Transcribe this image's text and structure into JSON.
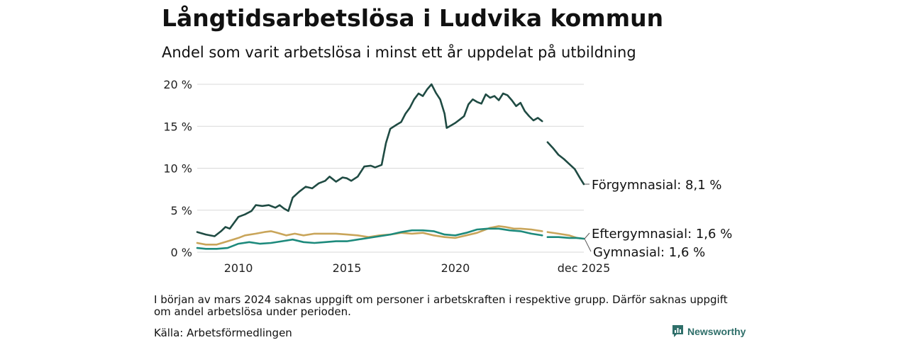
{
  "chart_data": {
    "type": "line",
    "title": "Långtidsarbetslösa i Ludvika kommun",
    "subtitle": "Andel som varit arbetslösa i minst ett år uppdelat på utbildning",
    "x_ticks": [
      {
        "x": 2010,
        "label": "2010"
      },
      {
        "x": 2015,
        "label": "2015"
      },
      {
        "x": 2020,
        "label": "2020"
      },
      {
        "x": 2025.92,
        "label": "dec 2025"
      }
    ],
    "y_ticks": [
      {
        "y": 0,
        "label": "0 %"
      },
      {
        "y": 5,
        "label": "5 %"
      },
      {
        "y": 10,
        "label": "10 %"
      },
      {
        "y": 15,
        "label": "15 %"
      },
      {
        "y": 20,
        "label": "20 %"
      }
    ],
    "xlim": [
      2008.1,
      2025.92
    ],
    "ylim": [
      0,
      20
    ],
    "gap": [
      2024.0,
      2024.25
    ],
    "series": [
      {
        "name": "Förgymnasial",
        "end_label": "Förgymnasial: 8,1 %",
        "color": "#1f4b43",
        "points": [
          [
            2008.1,
            2.4
          ],
          [
            2008.5,
            2.1
          ],
          [
            2008.9,
            1.9
          ],
          [
            2009.2,
            2.5
          ],
          [
            2009.4,
            3.0
          ],
          [
            2009.6,
            2.8
          ],
          [
            2009.8,
            3.5
          ],
          [
            2010.0,
            4.2
          ],
          [
            2010.3,
            4.5
          ],
          [
            2010.6,
            4.9
          ],
          [
            2010.8,
            5.6
          ],
          [
            2011.1,
            5.5
          ],
          [
            2011.4,
            5.6
          ],
          [
            2011.7,
            5.3
          ],
          [
            2011.9,
            5.6
          ],
          [
            2012.1,
            5.2
          ],
          [
            2012.3,
            4.9
          ],
          [
            2012.5,
            6.5
          ],
          [
            2012.8,
            7.2
          ],
          [
            2013.1,
            7.8
          ],
          [
            2013.4,
            7.6
          ],
          [
            2013.7,
            8.2
          ],
          [
            2014.0,
            8.5
          ],
          [
            2014.2,
            9.0
          ],
          [
            2014.5,
            8.4
          ],
          [
            2014.8,
            8.9
          ],
          [
            2015.0,
            8.8
          ],
          [
            2015.2,
            8.5
          ],
          [
            2015.5,
            9.0
          ],
          [
            2015.8,
            10.2
          ],
          [
            2016.1,
            10.3
          ],
          [
            2016.3,
            10.1
          ],
          [
            2016.6,
            10.4
          ],
          [
            2016.8,
            13.0
          ],
          [
            2017.0,
            14.7
          ],
          [
            2017.3,
            15.2
          ],
          [
            2017.5,
            15.5
          ],
          [
            2017.7,
            16.5
          ],
          [
            2017.9,
            17.2
          ],
          [
            2018.1,
            18.2
          ],
          [
            2018.3,
            18.9
          ],
          [
            2018.5,
            18.6
          ],
          [
            2018.7,
            19.4
          ],
          [
            2018.9,
            20.0
          ],
          [
            2019.1,
            19.0
          ],
          [
            2019.3,
            18.2
          ],
          [
            2019.5,
            16.5
          ],
          [
            2019.6,
            14.8
          ],
          [
            2019.8,
            15.1
          ],
          [
            2020.0,
            15.4
          ],
          [
            2020.2,
            15.8
          ],
          [
            2020.4,
            16.2
          ],
          [
            2020.6,
            17.6
          ],
          [
            2020.8,
            18.2
          ],
          [
            2021.0,
            17.9
          ],
          [
            2021.2,
            17.7
          ],
          [
            2021.4,
            18.8
          ],
          [
            2021.6,
            18.4
          ],
          [
            2021.8,
            18.6
          ],
          [
            2022.0,
            18.1
          ],
          [
            2022.2,
            18.9
          ],
          [
            2022.4,
            18.7
          ],
          [
            2022.6,
            18.1
          ],
          [
            2022.8,
            17.4
          ],
          [
            2023.0,
            17.8
          ],
          [
            2023.2,
            16.8
          ],
          [
            2023.4,
            16.2
          ],
          [
            2023.6,
            15.7
          ],
          [
            2023.8,
            16.0
          ],
          [
            2024.0,
            15.6
          ],
          [
            2024.25,
            13.1
          ],
          [
            2024.5,
            12.4
          ],
          [
            2024.75,
            11.6
          ],
          [
            2025.0,
            11.1
          ],
          [
            2025.25,
            10.5
          ],
          [
            2025.5,
            9.9
          ],
          [
            2025.75,
            8.8
          ],
          [
            2025.92,
            8.1
          ]
        ]
      },
      {
        "name": "Eftergymnasial",
        "end_label": "Eftergymnasial: 1,6 %",
        "color": "#c9a55a",
        "points": [
          [
            2008.1,
            1.1
          ],
          [
            2008.5,
            0.9
          ],
          [
            2009.0,
            0.9
          ],
          [
            2009.5,
            1.3
          ],
          [
            2010.0,
            1.7
          ],
          [
            2010.3,
            2.0
          ],
          [
            2010.8,
            2.2
          ],
          [
            2011.2,
            2.4
          ],
          [
            2011.5,
            2.5
          ],
          [
            2011.8,
            2.3
          ],
          [
            2012.2,
            2.0
          ],
          [
            2012.6,
            2.2
          ],
          [
            2013.0,
            2.0
          ],
          [
            2013.5,
            2.2
          ],
          [
            2014.0,
            2.2
          ],
          [
            2014.5,
            2.2
          ],
          [
            2015.0,
            2.1
          ],
          [
            2015.5,
            2.0
          ],
          [
            2016.0,
            1.8
          ],
          [
            2016.5,
            2.0
          ],
          [
            2017.0,
            2.1
          ],
          [
            2017.5,
            2.3
          ],
          [
            2018.0,
            2.2
          ],
          [
            2018.5,
            2.3
          ],
          [
            2019.0,
            2.0
          ],
          [
            2019.5,
            1.8
          ],
          [
            2020.0,
            1.7
          ],
          [
            2020.5,
            2.0
          ],
          [
            2021.0,
            2.3
          ],
          [
            2021.3,
            2.6
          ],
          [
            2021.6,
            2.9
          ],
          [
            2022.0,
            3.1
          ],
          [
            2022.3,
            3.0
          ],
          [
            2022.7,
            2.8
          ],
          [
            2023.0,
            2.8
          ],
          [
            2023.5,
            2.7
          ],
          [
            2024.0,
            2.5
          ],
          [
            2024.25,
            2.4
          ],
          [
            2024.75,
            2.2
          ],
          [
            2025.25,
            2.0
          ],
          [
            2025.6,
            1.7
          ],
          [
            2025.92,
            1.6
          ]
        ]
      },
      {
        "name": "Gymnasial",
        "end_label": "Gymnasial: 1,6 %",
        "color": "#1d8a7c",
        "points": [
          [
            2008.1,
            0.5
          ],
          [
            2008.5,
            0.4
          ],
          [
            2009.0,
            0.4
          ],
          [
            2009.5,
            0.5
          ],
          [
            2010.0,
            1.0
          ],
          [
            2010.5,
            1.2
          ],
          [
            2011.0,
            1.0
          ],
          [
            2011.5,
            1.1
          ],
          [
            2012.0,
            1.3
          ],
          [
            2012.5,
            1.5
          ],
          [
            2013.0,
            1.2
          ],
          [
            2013.5,
            1.1
          ],
          [
            2014.0,
            1.2
          ],
          [
            2014.5,
            1.3
          ],
          [
            2015.0,
            1.3
          ],
          [
            2015.5,
            1.5
          ],
          [
            2016.0,
            1.7
          ],
          [
            2016.5,
            1.9
          ],
          [
            2017.0,
            2.1
          ],
          [
            2017.5,
            2.4
          ],
          [
            2018.0,
            2.6
          ],
          [
            2018.5,
            2.6
          ],
          [
            2019.0,
            2.5
          ],
          [
            2019.5,
            2.1
          ],
          [
            2020.0,
            2.0
          ],
          [
            2020.5,
            2.3
          ],
          [
            2021.0,
            2.7
          ],
          [
            2021.5,
            2.8
          ],
          [
            2022.0,
            2.8
          ],
          [
            2022.5,
            2.6
          ],
          [
            2023.0,
            2.5
          ],
          [
            2023.5,
            2.2
          ],
          [
            2024.0,
            2.0
          ],
          [
            2024.25,
            1.8
          ],
          [
            2024.75,
            1.8
          ],
          [
            2025.25,
            1.7
          ],
          [
            2025.6,
            1.7
          ],
          [
            2025.92,
            1.6
          ]
        ]
      }
    ]
  },
  "footer": {
    "note": "I början av mars 2024 saknas uppgift om personer i arbetskraften i respektive grupp. Därför saknas uppgift om andel arbetslösa under perioden.",
    "source": "Källa: Arbetsförmedlingen",
    "brand": "Newsworthy"
  },
  "colors": {
    "grid": "#d9d9d9",
    "brand": "#2f6f6a"
  }
}
